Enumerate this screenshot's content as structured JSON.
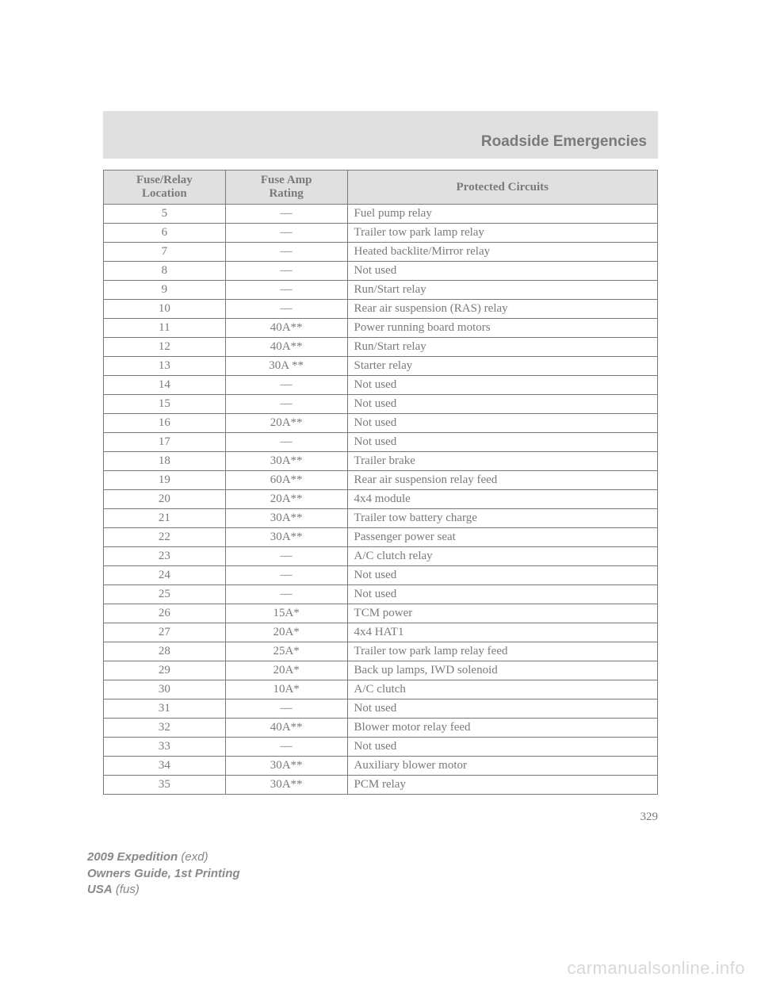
{
  "section_title": "Roadside Emergencies",
  "page_number": "329",
  "table": {
    "headers": {
      "col1_line1": "Fuse/Relay",
      "col1_line2": "Location",
      "col2_line1": "Fuse Amp",
      "col2_line2": "Rating",
      "col3": "Protected Circuits"
    },
    "rows": [
      {
        "loc": "5",
        "amp": "—",
        "desc": "Fuel pump relay"
      },
      {
        "loc": "6",
        "amp": "—",
        "desc": "Trailer tow park lamp relay"
      },
      {
        "loc": "7",
        "amp": "—",
        "desc": "Heated backlite/Mirror relay"
      },
      {
        "loc": "8",
        "amp": "—",
        "desc": "Not used"
      },
      {
        "loc": "9",
        "amp": "—",
        "desc": "Run/Start relay"
      },
      {
        "loc": "10",
        "amp": "—",
        "desc": "Rear air suspension (RAS) relay"
      },
      {
        "loc": "11",
        "amp": "40A**",
        "desc": "Power running board motors"
      },
      {
        "loc": "12",
        "amp": "40A**",
        "desc": "Run/Start relay"
      },
      {
        "loc": "13",
        "amp": "30A **",
        "desc": "Starter relay"
      },
      {
        "loc": "14",
        "amp": "—",
        "desc": "Not used"
      },
      {
        "loc": "15",
        "amp": "—",
        "desc": "Not used"
      },
      {
        "loc": "16",
        "amp": "20A**",
        "desc": "Not used"
      },
      {
        "loc": "17",
        "amp": "—",
        "desc": "Not used"
      },
      {
        "loc": "18",
        "amp": "30A**",
        "desc": "Trailer brake"
      },
      {
        "loc": "19",
        "amp": "60A**",
        "desc": "Rear air suspension relay feed"
      },
      {
        "loc": "20",
        "amp": "20A**",
        "desc": "4x4 module"
      },
      {
        "loc": "21",
        "amp": "30A**",
        "desc": "Trailer tow battery charge"
      },
      {
        "loc": "22",
        "amp": "30A**",
        "desc": "Passenger power seat"
      },
      {
        "loc": "23",
        "amp": "—",
        "desc": "A/C clutch relay"
      },
      {
        "loc": "24",
        "amp": "—",
        "desc": "Not used"
      },
      {
        "loc": "25",
        "amp": "—",
        "desc": "Not used"
      },
      {
        "loc": "26",
        "amp": "15A*",
        "desc": "TCM power"
      },
      {
        "loc": "27",
        "amp": "20A*",
        "desc": "4x4 HAT1"
      },
      {
        "loc": "28",
        "amp": "25A*",
        "desc": "Trailer tow park lamp relay feed"
      },
      {
        "loc": "29",
        "amp": "20A*",
        "desc": "Back up lamps, IWD solenoid"
      },
      {
        "loc": "30",
        "amp": "10A*",
        "desc": "A/C clutch"
      },
      {
        "loc": "31",
        "amp": "—",
        "desc": "Not used"
      },
      {
        "loc": "32",
        "amp": "40A**",
        "desc": "Blower motor relay feed"
      },
      {
        "loc": "33",
        "amp": "—",
        "desc": "Not used"
      },
      {
        "loc": "34",
        "amp": "30A**",
        "desc": "Auxiliary blower motor"
      },
      {
        "loc": "35",
        "amp": "30A**",
        "desc": "PCM relay"
      }
    ]
  },
  "footer": {
    "line1a": "2009 Expedition",
    "line1b": " (exd)",
    "line2": "Owners Guide, 1st Printing",
    "line3a": "USA",
    "line3b": " (fus)"
  },
  "watermark": "carmanualsonline.info",
  "colors": {
    "header_bg": "#e0e0e0",
    "text": "#7a7a7a",
    "border": "#7a7a7a",
    "watermark": "#d8d8d8"
  }
}
